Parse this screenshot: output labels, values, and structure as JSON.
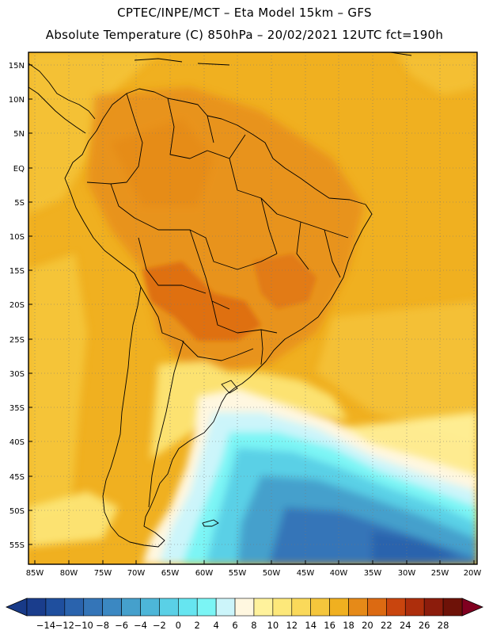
{
  "header": {
    "line1": "CPTEC/INPE/MCT –  Eta Model 15km – GFS",
    "line2": "Absolute Temperature (C) 850hPa – 20/02/2021 12UTC fct=190h"
  },
  "axes": {
    "lat_labels": [
      "15N",
      "10N",
      "5N",
      "EQ",
      "5S",
      "10S",
      "15S",
      "20S",
      "25S",
      "30S",
      "35S",
      "40S",
      "45S",
      "50S",
      "55S"
    ],
    "lon_labels": [
      "85W",
      "80W",
      "75W",
      "70W",
      "65W",
      "60W",
      "55W",
      "50W",
      "45W",
      "40W",
      "35W",
      "30W",
      "25W",
      "20W"
    ]
  },
  "colorbar": {
    "labels": [
      "-14",
      "-12",
      "-10",
      "-8",
      "-6",
      "-4",
      "-2",
      "0",
      "2",
      "4",
      "6",
      "8",
      "10",
      "12",
      "14",
      "16",
      "18",
      "20",
      "22",
      "24",
      "26",
      "28"
    ],
    "colors": [
      "#1a3d8c",
      "#1f4f9e",
      "#2a63ad",
      "#3475b8",
      "#3b88c2",
      "#45a0cc",
      "#4db6d8",
      "#5ad0e6",
      "#66e5f0",
      "#7bf5f5",
      "#ccf5fa",
      "#fff7e0",
      "#fff29c",
      "#fde87a",
      "#fad95a",
      "#f5c63c",
      "#f0b020",
      "#e68a18",
      "#dc6a12",
      "#c9450e",
      "#ad2e0c",
      "#8c1c0c",
      "#6e1208"
    ],
    "under_color": "#183a88",
    "over_color": "#800020"
  }
}
